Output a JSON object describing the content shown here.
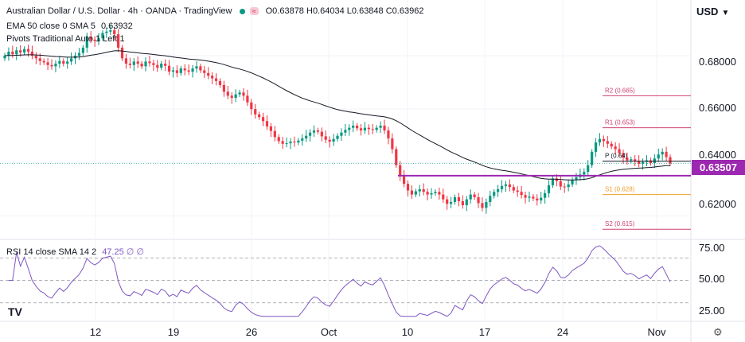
{
  "header": {
    "symbol_line": "Australian Dollar / U.S. Dollar · 4h · OANDA · TradingView",
    "ohlc_o": "O0.63878",
    "ohlc_h": "H0.64034",
    "ohlc_l": "L0.63848",
    "ohlc_c": "C0.63962",
    "wave_icon": "wave-icon",
    "ema_label": "EMA 50 close 0 SMA 5",
    "ema_value": "0.63932",
    "pivots_label": "Pivots Traditional Auto 1 Left 1",
    "rsi_label": "RSI 14 close SMA 14 2",
    "rsi_values": "47.25 ∅ ∅",
    "currency_button": "USD",
    "currency_chevron": "chevron-down-icon"
  },
  "colors": {
    "up": "#089981",
    "down": "#f23645",
    "ema": "#131722",
    "rsi": "#7e57c2",
    "pivot_r": "#d0406f",
    "pivot_s": "#f0a030",
    "pivot_p": "#131722",
    "hline": "#9c27b0"
  },
  "price_axis": {
    "labels": [
      "0.68000",
      "0.66000",
      "0.64000",
      "0.62000"
    ],
    "marker": "0.63507"
  },
  "rsi_axis": {
    "labels": [
      "75.00",
      "50.00",
      "25.00"
    ]
  },
  "time_axis": {
    "labels": [
      "12",
      "19",
      "26",
      "Oct",
      "10",
      "17",
      "24",
      "Nov"
    ]
  },
  "chart_data": {
    "type": "candlestick",
    "symbol": "Australian Dollar / U.S. Dollar",
    "interval": "4h",
    "source": "OANDA",
    "ylim": [
      0.6115,
      0.6925
    ],
    "rsi_ylim": [
      15,
      85
    ],
    "rsi_levels": [
      70,
      50,
      30
    ],
    "candles_close": [
      0.68,
      0.6815,
      0.6805,
      0.682,
      0.6812,
      0.6825,
      0.6815,
      0.68,
      0.679,
      0.678,
      0.6775,
      0.6765,
      0.676,
      0.677,
      0.678,
      0.677,
      0.6778,
      0.679,
      0.68,
      0.681,
      0.683,
      0.687,
      0.686,
      0.6855,
      0.6865,
      0.6885,
      0.689,
      0.6895,
      0.688,
      0.683,
      0.679,
      0.677,
      0.6765,
      0.6778,
      0.677,
      0.676,
      0.6778,
      0.6772,
      0.6765,
      0.6755,
      0.677,
      0.6762,
      0.674,
      0.6745,
      0.6735,
      0.6752,
      0.6745,
      0.674,
      0.6752,
      0.676,
      0.6745,
      0.6735,
      0.6725,
      0.6715,
      0.6705,
      0.669,
      0.6665,
      0.665,
      0.6642,
      0.6655,
      0.6662,
      0.665,
      0.6625,
      0.66,
      0.658,
      0.657,
      0.6555,
      0.6535,
      0.6518,
      0.6495,
      0.648,
      0.647,
      0.6472,
      0.6478,
      0.6475,
      0.6482,
      0.649,
      0.65,
      0.6512,
      0.652,
      0.6515,
      0.6498,
      0.6485,
      0.6478,
      0.6488,
      0.65,
      0.6512,
      0.6522,
      0.653,
      0.6538,
      0.6528,
      0.652,
      0.653,
      0.6525,
      0.6522,
      0.653,
      0.6538,
      0.652,
      0.649,
      0.645,
      0.639,
      0.635,
      0.632,
      0.6295,
      0.628,
      0.6292,
      0.63,
      0.629,
      0.628,
      0.6285,
      0.629,
      0.628,
      0.6262,
      0.6245,
      0.6252,
      0.627,
      0.6255,
      0.624,
      0.6262,
      0.628,
      0.627,
      0.6248,
      0.623,
      0.6252,
      0.6275,
      0.629,
      0.63,
      0.6312,
      0.6318,
      0.6308,
      0.6295,
      0.629,
      0.6278,
      0.6268,
      0.6272,
      0.6265,
      0.6258,
      0.6268,
      0.6285,
      0.6315,
      0.634,
      0.633,
      0.631,
      0.6308,
      0.6318,
      0.6335,
      0.6345,
      0.6355,
      0.6365,
      0.639,
      0.644,
      0.6475,
      0.6488,
      0.648,
      0.647,
      0.646,
      0.645,
      0.6435,
      0.6418,
      0.6408,
      0.6412,
      0.6405,
      0.6395,
      0.6402,
      0.6408,
      0.6398,
      0.6415,
      0.643,
      0.644,
      0.642,
      0.6396
    ],
    "candles_note": "4h AUD/USD closes estimated from chart",
    "ema50": "computed from closes",
    "pivots": [
      {
        "label": "R2 (0.665)",
        "value": 0.665
      },
      {
        "label": "R1 (0.653)",
        "value": 0.653
      },
      {
        "label": "P (0.64)",
        "value": 0.6405
      },
      {
        "label": "S1 (0.628)",
        "value": 0.628
      },
      {
        "label": "S2 (0.615)",
        "value": 0.615
      }
    ],
    "horizontal_line": 0.63507,
    "last_price": 0.63962,
    "rsi_last": 47.25
  }
}
